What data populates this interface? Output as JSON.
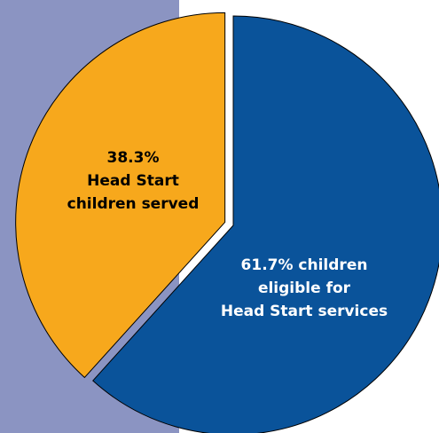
{
  "chart_data": {
    "type": "pie",
    "title": "",
    "start_angle_deg": 0,
    "direction": "clockwise",
    "slices": [
      {
        "name": "children eligible for Head Start services",
        "value": 61.7,
        "label_lines": [
          "61.7% children",
          "eligible for",
          "Head Start services"
        ],
        "color": "#0a539a",
        "label_color": "#ffffff",
        "exploded": false
      },
      {
        "name": "Head Start children served",
        "value": 38.3,
        "label_lines": [
          "38.3%",
          "Head Start",
          "children served"
        ],
        "color": "#f7a81c",
        "label_color": "#000000",
        "exploded": true
      }
    ]
  },
  "colors": {
    "background": "#ffffff",
    "sidebar": "#8b94c2",
    "slice_border": "#000000"
  }
}
